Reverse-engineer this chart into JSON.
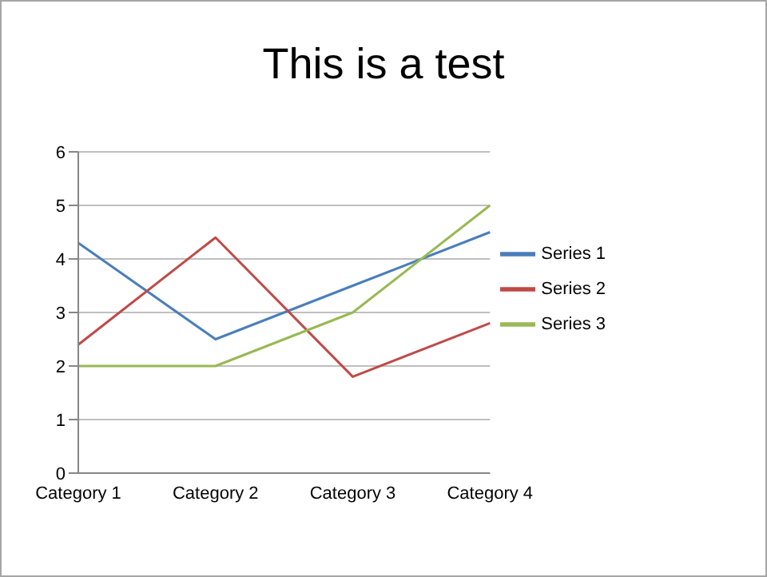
{
  "chart_data": {
    "type": "line",
    "title": "This is a test",
    "categories": [
      "Category 1",
      "Category 2",
      "Category 3",
      "Category 4"
    ],
    "series": [
      {
        "name": "Series 1",
        "color": "#4a7ebb",
        "values": [
          4.3,
          2.5,
          3.5,
          4.5
        ]
      },
      {
        "name": "Series 2",
        "color": "#be4b48",
        "values": [
          2.4,
          4.4,
          1.8,
          2.8
        ]
      },
      {
        "name": "Series 3",
        "color": "#98b954",
        "values": [
          2,
          2,
          3,
          5
        ]
      }
    ],
    "ylim": [
      0,
      6
    ],
    "yticks": [
      0,
      1,
      2,
      3,
      4,
      5,
      6
    ],
    "grid": "y",
    "legend": "right"
  }
}
